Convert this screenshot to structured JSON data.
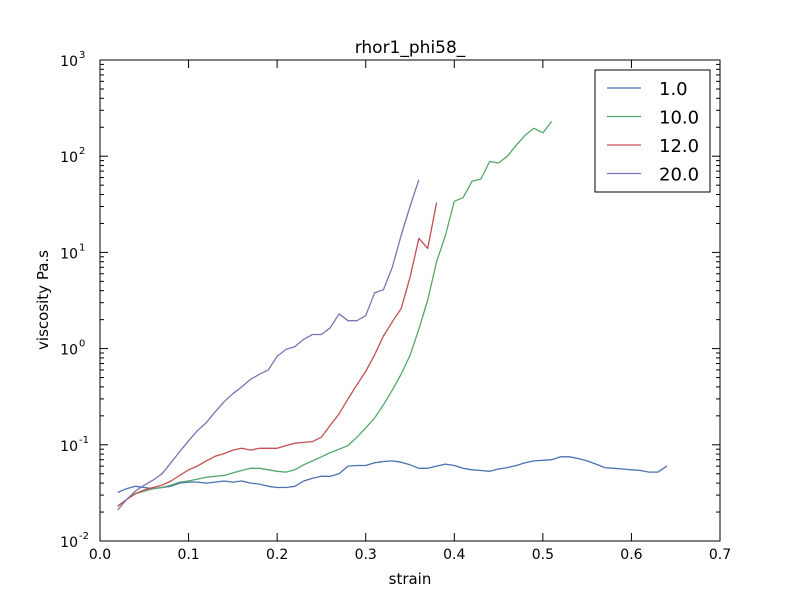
{
  "chart_data": {
    "type": "line",
    "title": "rhor1_phi58_",
    "xlabel": "strain",
    "ylabel": "viscosity Pa.s",
    "xlim": [
      0.0,
      0.7
    ],
    "ylim": [
      0.01,
      1000
    ],
    "yscale": "log",
    "grid": false,
    "legend_position": "top-right",
    "x_ticks": [
      "0.0",
      "0.1",
      "0.2",
      "0.3",
      "0.4",
      "0.5",
      "0.6",
      "0.7"
    ],
    "y_ticks": [
      {
        "base": "10",
        "exp": "-2"
      },
      {
        "base": "10",
        "exp": "-1"
      },
      {
        "base": "10",
        "exp": "0"
      },
      {
        "base": "10",
        "exp": "1"
      },
      {
        "base": "10",
        "exp": "2"
      },
      {
        "base": "10",
        "exp": "3"
      }
    ],
    "series": [
      {
        "name": "1.0",
        "color": "#4c72b0",
        "x": [
          0.02,
          0.03,
          0.04,
          0.05,
          0.06,
          0.07,
          0.08,
          0.09,
          0.1,
          0.11,
          0.12,
          0.13,
          0.14,
          0.15,
          0.16,
          0.17,
          0.18,
          0.19,
          0.2,
          0.21,
          0.22,
          0.23,
          0.24,
          0.25,
          0.26,
          0.27,
          0.28,
          0.29,
          0.3,
          0.31,
          0.32,
          0.33,
          0.34,
          0.35,
          0.36,
          0.37,
          0.38,
          0.39,
          0.4,
          0.41,
          0.42,
          0.43,
          0.44,
          0.45,
          0.46,
          0.47,
          0.48,
          0.49,
          0.5,
          0.51,
          0.52,
          0.53,
          0.54,
          0.55,
          0.56,
          0.57,
          0.58,
          0.59,
          0.6,
          0.61,
          0.62,
          0.63,
          0.64
        ],
        "y": [
          0.032,
          0.035,
          0.037,
          0.036,
          0.035,
          0.036,
          0.037,
          0.04,
          0.041,
          0.041,
          0.04,
          0.041,
          0.042,
          0.041,
          0.042,
          0.04,
          0.039,
          0.037,
          0.036,
          0.036,
          0.037,
          0.042,
          0.045,
          0.047,
          0.047,
          0.05,
          0.06,
          0.061,
          0.061,
          0.065,
          0.067,
          0.068,
          0.066,
          0.062,
          0.057,
          0.057,
          0.06,
          0.063,
          0.061,
          0.057,
          0.055,
          0.054,
          0.053,
          0.056,
          0.058,
          0.061,
          0.065,
          0.068,
          0.069,
          0.07,
          0.075,
          0.075,
          0.072,
          0.068,
          0.063,
          0.058,
          0.057,
          0.056,
          0.055,
          0.054,
          0.052,
          0.052,
          0.06
        ]
      },
      {
        "name": "10.0",
        "color": "#55a868",
        "x": [
          0.02,
          0.03,
          0.04,
          0.05,
          0.06,
          0.07,
          0.08,
          0.09,
          0.1,
          0.11,
          0.12,
          0.13,
          0.14,
          0.15,
          0.16,
          0.17,
          0.18,
          0.19,
          0.2,
          0.21,
          0.22,
          0.23,
          0.24,
          0.25,
          0.26,
          0.27,
          0.28,
          0.29,
          0.3,
          0.31,
          0.32,
          0.33,
          0.34,
          0.35,
          0.36,
          0.37,
          0.38,
          0.39,
          0.4,
          0.41,
          0.42,
          0.43,
          0.44,
          0.45,
          0.46,
          0.47,
          0.48,
          0.49,
          0.5,
          0.51
        ],
        "y": [
          0.023,
          0.027,
          0.031,
          0.033,
          0.035,
          0.036,
          0.038,
          0.041,
          0.042,
          0.044,
          0.046,
          0.047,
          0.048,
          0.051,
          0.054,
          0.057,
          0.057,
          0.055,
          0.053,
          0.052,
          0.055,
          0.062,
          0.068,
          0.075,
          0.083,
          0.09,
          0.098,
          0.12,
          0.15,
          0.19,
          0.26,
          0.37,
          0.54,
          0.85,
          1.6,
          3.2,
          8.0,
          15,
          34,
          37,
          55,
          58,
          88,
          85,
          100,
          130,
          165,
          195,
          175,
          230
        ]
      },
      {
        "name": "12.0",
        "color": "#c44e52",
        "x": [
          0.02,
          0.03,
          0.04,
          0.05,
          0.06,
          0.07,
          0.08,
          0.09,
          0.1,
          0.11,
          0.12,
          0.13,
          0.14,
          0.15,
          0.16,
          0.17,
          0.18,
          0.19,
          0.2,
          0.21,
          0.22,
          0.23,
          0.24,
          0.25,
          0.26,
          0.27,
          0.28,
          0.29,
          0.3,
          0.31,
          0.32,
          0.33,
          0.34,
          0.35,
          0.36,
          0.37,
          0.38
        ],
        "y": [
          0.023,
          0.027,
          0.031,
          0.034,
          0.036,
          0.038,
          0.042,
          0.048,
          0.055,
          0.06,
          0.068,
          0.076,
          0.081,
          0.088,
          0.092,
          0.088,
          0.092,
          0.092,
          0.092,
          0.098,
          0.104,
          0.106,
          0.108,
          0.12,
          0.16,
          0.21,
          0.3,
          0.42,
          0.58,
          0.86,
          1.35,
          1.9,
          2.6,
          5.5,
          14,
          11,
          33
        ]
      },
      {
        "name": "20.0",
        "color": "#8172b2",
        "x": [
          0.02,
          0.03,
          0.04,
          0.05,
          0.06,
          0.07,
          0.08,
          0.09,
          0.1,
          0.11,
          0.12,
          0.13,
          0.14,
          0.15,
          0.16,
          0.17,
          0.18,
          0.19,
          0.2,
          0.21,
          0.22,
          0.23,
          0.24,
          0.25,
          0.26,
          0.27,
          0.28,
          0.29,
          0.3,
          0.31,
          0.32,
          0.33,
          0.34,
          0.35,
          0.36
        ],
        "y": [
          0.021,
          0.027,
          0.033,
          0.038,
          0.043,
          0.05,
          0.065,
          0.085,
          0.11,
          0.14,
          0.17,
          0.22,
          0.28,
          0.34,
          0.4,
          0.48,
          0.54,
          0.6,
          0.83,
          0.98,
          1.05,
          1.25,
          1.4,
          1.4,
          1.65,
          2.3,
          1.95,
          1.95,
          2.2,
          3.8,
          4.1,
          7.0,
          15,
          30,
          57
        ]
      }
    ]
  }
}
